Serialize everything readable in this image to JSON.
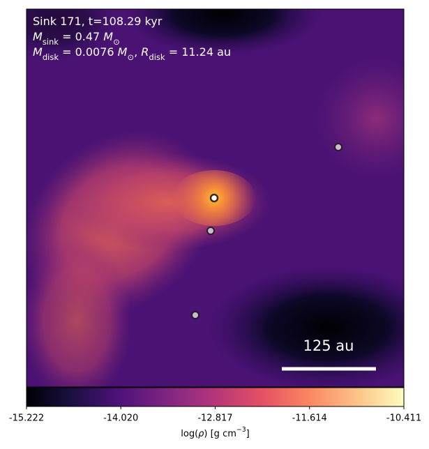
{
  "chart_data": {
    "type": "density-map",
    "annotations": [
      [
        {
          "text": "Sink 171, t=108.29 kyr"
        }
      ],
      [
        {
          "text": "M",
          "italic": true
        },
        {
          "text": "sink",
          "sub": true
        },
        {
          "text": " = 0.47 "
        },
        {
          "text": "M",
          "italic": true
        },
        {
          "text": "⊙",
          "sub": true
        }
      ],
      [
        {
          "text": "M",
          "italic": true
        },
        {
          "text": "disk",
          "sub": true
        },
        {
          "text": " = 0.0076 "
        },
        {
          "text": "M",
          "italic": true
        },
        {
          "text": "⊙",
          "sub": true
        },
        {
          "text": ", "
        },
        {
          "text": "R",
          "italic": true
        },
        {
          "text": "disk",
          "sub": true
        },
        {
          "text": " = 11.24 au"
        }
      ]
    ],
    "scale_bar": "125 au",
    "colorbar": {
      "colormap": "magma",
      "lim": [
        -15.222,
        -10.411
      ],
      "ticks": [
        -15.222,
        {
          "value": -14.02,
          "label": "-14.020"
        },
        -12.817,
        -11.614,
        -10.411
      ],
      "label": [
        {
          "text": "log("
        },
        {
          "text": "ρ",
          "italic": true
        },
        {
          "text": ") [g cm"
        },
        {
          "text": "−3",
          "sup": true
        },
        {
          "text": "]"
        }
      ]
    }
  }
}
